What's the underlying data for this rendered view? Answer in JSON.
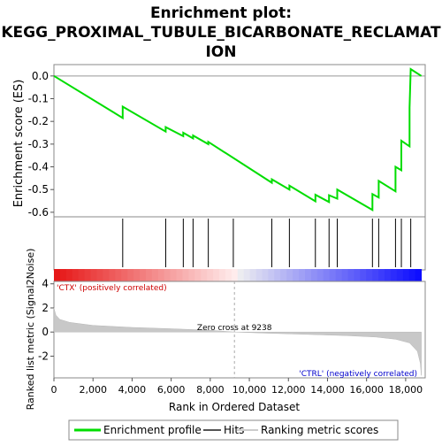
{
  "chart_data": {
    "type": "line",
    "title_lines": [
      "Enrichment plot:",
      "KEGG_PROXIMAL_TUBULE_BICARBONATE_RECLAMAT",
      "ION"
    ],
    "es_panel": {
      "ylabel": "Enrichment score (ES)",
      "ylim": [
        -0.62,
        0.05
      ],
      "yticks": [
        0.0,
        -0.1,
        -0.2,
        -0.3,
        -0.4,
        -0.5,
        -0.6
      ],
      "ytick_labels": [
        "0.0",
        "-0.1",
        "-0.2",
        "-0.3",
        "-0.4",
        "-0.5",
        "-0.6"
      ],
      "series_name": "Enrichment profile",
      "color": "#00dd00",
      "points": [
        [
          0,
          0.0
        ],
        [
          3520,
          -0.185
        ],
        [
          3520,
          -0.135
        ],
        [
          5720,
          -0.245
        ],
        [
          5720,
          -0.225
        ],
        [
          6620,
          -0.265
        ],
        [
          6620,
          -0.25
        ],
        [
          7120,
          -0.275
        ],
        [
          7120,
          -0.262
        ],
        [
          7900,
          -0.3
        ],
        [
          7900,
          -0.29
        ],
        [
          11150,
          -0.47
        ],
        [
          11150,
          -0.455
        ],
        [
          12050,
          -0.5
        ],
        [
          12050,
          -0.483
        ],
        [
          13380,
          -0.552
        ],
        [
          13380,
          -0.523
        ],
        [
          14080,
          -0.555
        ],
        [
          14080,
          -0.525
        ],
        [
          14500,
          -0.54
        ],
        [
          14500,
          -0.5
        ],
        [
          16300,
          -0.59
        ],
        [
          16300,
          -0.52
        ],
        [
          16620,
          -0.535
        ],
        [
          16620,
          -0.462
        ],
        [
          17480,
          -0.508
        ],
        [
          17480,
          -0.4
        ],
        [
          17780,
          -0.415
        ],
        [
          17780,
          -0.285
        ],
        [
          18200,
          -0.31
        ],
        [
          18200,
          -0.14
        ],
        [
          18260,
          0.03
        ],
        [
          18800,
          0.0
        ]
      ]
    },
    "hits": {
      "series_name": "Hits",
      "positions": [
        3520,
        5720,
        6620,
        7120,
        7900,
        9180,
        11150,
        12050,
        13380,
        14080,
        14500,
        16300,
        16620,
        17480,
        17780,
        18260
      ]
    },
    "ranked_metric": {
      "ylabel": "Ranked list metric (Signal2Noise)",
      "ylim": [
        -3.8,
        4.2
      ],
      "yticks": [
        4,
        2,
        0,
        -2
      ],
      "ytick_labels": [
        "4",
        "2",
        "0",
        "-2"
      ],
      "series_name": "Ranking metric scores",
      "profile": [
        [
          0,
          2.0
        ],
        [
          100,
          1.4
        ],
        [
          300,
          1.05
        ],
        [
          800,
          0.8
        ],
        [
          2000,
          0.55
        ],
        [
          4000,
          0.38
        ],
        [
          6000,
          0.27
        ],
        [
          8000,
          0.15
        ],
        [
          9238,
          0.0
        ],
        [
          11000,
          -0.1
        ],
        [
          13000,
          -0.2
        ],
        [
          15000,
          -0.3
        ],
        [
          16500,
          -0.42
        ],
        [
          17500,
          -0.6
        ],
        [
          18200,
          -0.9
        ],
        [
          18600,
          -1.6
        ],
        [
          18750,
          -2.6
        ],
        [
          18800,
          -3.6
        ]
      ],
      "zero_cross_label": "Zero cross at 9238",
      "zero_cross": 9238,
      "pos_label": "'CTX' (positively correlated)",
      "neg_label": "'CTRL' (negatively correlated)"
    },
    "xlabel": "Rank in Ordered Dataset",
    "xlim": [
      0,
      19000
    ],
    "xticks": [
      0,
      2000,
      4000,
      6000,
      8000,
      10000,
      12000,
      14000,
      16000,
      18000
    ],
    "xtick_labels": [
      "0",
      "2,000",
      "4,000",
      "6,000",
      "8,000",
      "10,000",
      "12,000",
      "14,000",
      "16,000",
      "18,000"
    ],
    "legend": {
      "placement": "bottom",
      "entries": [
        "Enrichment profile",
        "Hits",
        "Ranking metric scores"
      ]
    }
  }
}
